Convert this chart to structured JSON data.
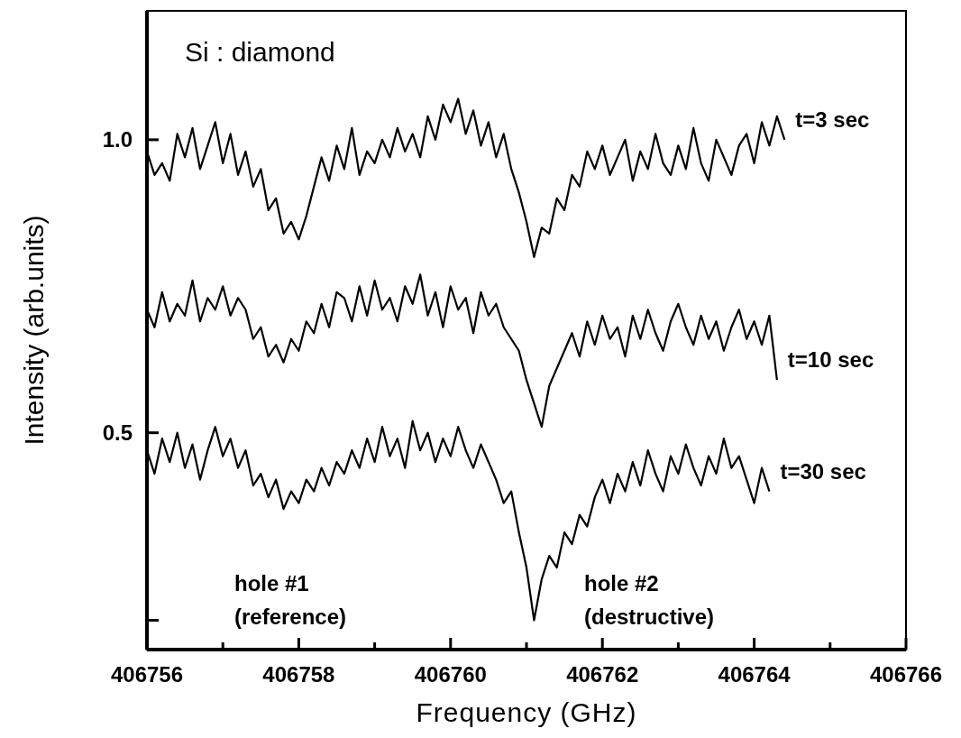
{
  "chart_data": {
    "type": "line",
    "xlabel": "Frequency (GHz)",
    "ylabel": "Intensity (arb.units)",
    "annotations": [
      "Si : diamond",
      "hole #1\n(reference)",
      "hole #2\n(destructive)"
    ],
    "x": [
      406756.0,
      406756.1,
      406756.2,
      406756.3,
      406756.4,
      406756.5,
      406756.6,
      406756.7,
      406756.8,
      406756.9,
      406757.0,
      406757.1,
      406757.2,
      406757.3,
      406757.4,
      406757.5,
      406757.6,
      406757.7,
      406757.8,
      406757.9,
      406758.0,
      406758.1,
      406758.2,
      406758.3,
      406758.4,
      406758.5,
      406758.6,
      406758.7,
      406758.8,
      406758.9,
      406759.0,
      406759.1,
      406759.2,
      406759.3,
      406759.4,
      406759.5,
      406759.6,
      406759.7,
      406759.8,
      406759.9,
      406760.0,
      406760.1,
      406760.2,
      406760.3,
      406760.4,
      406760.5,
      406760.6,
      406760.7,
      406760.8,
      406760.9,
      406761.0,
      406761.1,
      406761.2,
      406761.3,
      406761.4,
      406761.5,
      406761.6,
      406761.7,
      406761.8,
      406761.9,
      406762.0,
      406762.1,
      406762.2,
      406762.3,
      406762.4,
      406762.5,
      406762.6,
      406762.7,
      406762.8,
      406762.9,
      406763.0,
      406763.1,
      406763.2,
      406763.3,
      406763.4,
      406763.5,
      406763.6,
      406763.7,
      406763.8,
      406763.9,
      406764.0,
      406764.1,
      406764.2,
      406764.3,
      406764.4
    ],
    "series": [
      {
        "name": "t=3 sec",
        "color": "#000000",
        "values": [
          0.98,
          0.94,
          0.96,
          0.93,
          1.01,
          0.97,
          1.02,
          0.95,
          0.99,
          1.03,
          0.96,
          1.01,
          0.94,
          0.98,
          0.92,
          0.95,
          0.88,
          0.9,
          0.84,
          0.86,
          0.83,
          0.87,
          0.92,
          0.97,
          0.93,
          0.99,
          0.95,
          1.02,
          0.94,
          0.98,
          0.96,
          1.0,
          0.97,
          1.02,
          0.98,
          1.01,
          0.97,
          1.04,
          1.0,
          1.06,
          1.03,
          1.07,
          1.01,
          1.05,
          0.99,
          1.03,
          0.97,
          1.01,
          0.95,
          0.91,
          0.86,
          0.8,
          0.85,
          0.84,
          0.9,
          0.88,
          0.94,
          0.92,
          0.98,
          0.95,
          0.99,
          0.94,
          0.97,
          1.0,
          0.93,
          0.98,
          0.95,
          1.01,
          0.96,
          0.94,
          0.99,
          0.95,
          1.02,
          0.96,
          0.93,
          1.0,
          0.97,
          0.94,
          0.99,
          1.01,
          0.96,
          1.03,
          0.99,
          1.04,
          1.0
        ]
      },
      {
        "name": "t=10 sec",
        "color": "#000000",
        "values": [
          0.71,
          0.68,
          0.74,
          0.69,
          0.72,
          0.7,
          0.76,
          0.69,
          0.73,
          0.71,
          0.75,
          0.7,
          0.73,
          0.71,
          0.66,
          0.68,
          0.63,
          0.65,
          0.62,
          0.66,
          0.64,
          0.69,
          0.67,
          0.72,
          0.68,
          0.74,
          0.73,
          0.69,
          0.75,
          0.7,
          0.76,
          0.71,
          0.73,
          0.69,
          0.75,
          0.72,
          0.77,
          0.7,
          0.74,
          0.68,
          0.75,
          0.71,
          0.73,
          0.67,
          0.74,
          0.7,
          0.72,
          0.68,
          0.66,
          0.64,
          0.59,
          0.55,
          0.51,
          0.58,
          0.61,
          0.64,
          0.67,
          0.63,
          0.69,
          0.65,
          0.7,
          0.66,
          0.68,
          0.63,
          0.7,
          0.66,
          0.71,
          0.67,
          0.64,
          0.69,
          0.72,
          0.68,
          0.65,
          0.7,
          0.66,
          0.69,
          0.64,
          0.68,
          0.71,
          0.66,
          0.69,
          0.65,
          0.7,
          0.59,
          null
        ]
      },
      {
        "name": "t=30 sec",
        "color": "#000000",
        "values": [
          0.47,
          0.43,
          0.49,
          0.45,
          0.5,
          0.44,
          0.48,
          0.42,
          0.47,
          0.51,
          0.46,
          0.49,
          0.44,
          0.47,
          0.41,
          0.43,
          0.39,
          0.42,
          0.37,
          0.4,
          0.38,
          0.42,
          0.4,
          0.44,
          0.41,
          0.45,
          0.43,
          0.47,
          0.44,
          0.49,
          0.45,
          0.51,
          0.46,
          0.49,
          0.44,
          0.52,
          0.47,
          0.5,
          0.45,
          0.49,
          0.46,
          0.51,
          0.47,
          0.44,
          0.48,
          0.45,
          0.42,
          0.38,
          0.4,
          0.33,
          0.27,
          0.18,
          0.25,
          0.29,
          0.27,
          0.33,
          0.31,
          0.36,
          0.34,
          0.39,
          0.42,
          0.38,
          0.43,
          0.4,
          0.45,
          0.41,
          0.47,
          0.43,
          0.4,
          0.46,
          0.43,
          0.48,
          0.44,
          0.41,
          0.46,
          0.43,
          0.49,
          0.44,
          0.46,
          0.42,
          0.38,
          0.44,
          0.4,
          null,
          null
        ]
      }
    ],
    "xlim": [
      406756,
      406766
    ],
    "xticks": [
      406756,
      {
        "value": 406757,
        "label": null
      },
      406758,
      {
        "value": 406759,
        "label": null
      },
      406760,
      {
        "value": 406761,
        "label": null
      },
      406762,
      {
        "value": 406763,
        "label": null
      },
      406764,
      {
        "value": 406765,
        "label": null
      },
      406766
    ],
    "ylim": [
      0.13,
      1.22
    ],
    "yticks": [
      {
        "value": 0.18,
        "label": null
      },
      {
        "value": 0.5,
        "label": "0.5"
      },
      {
        "value": 1.0,
        "label": "1.0"
      }
    ],
    "legend": false,
    "grid": false
  }
}
